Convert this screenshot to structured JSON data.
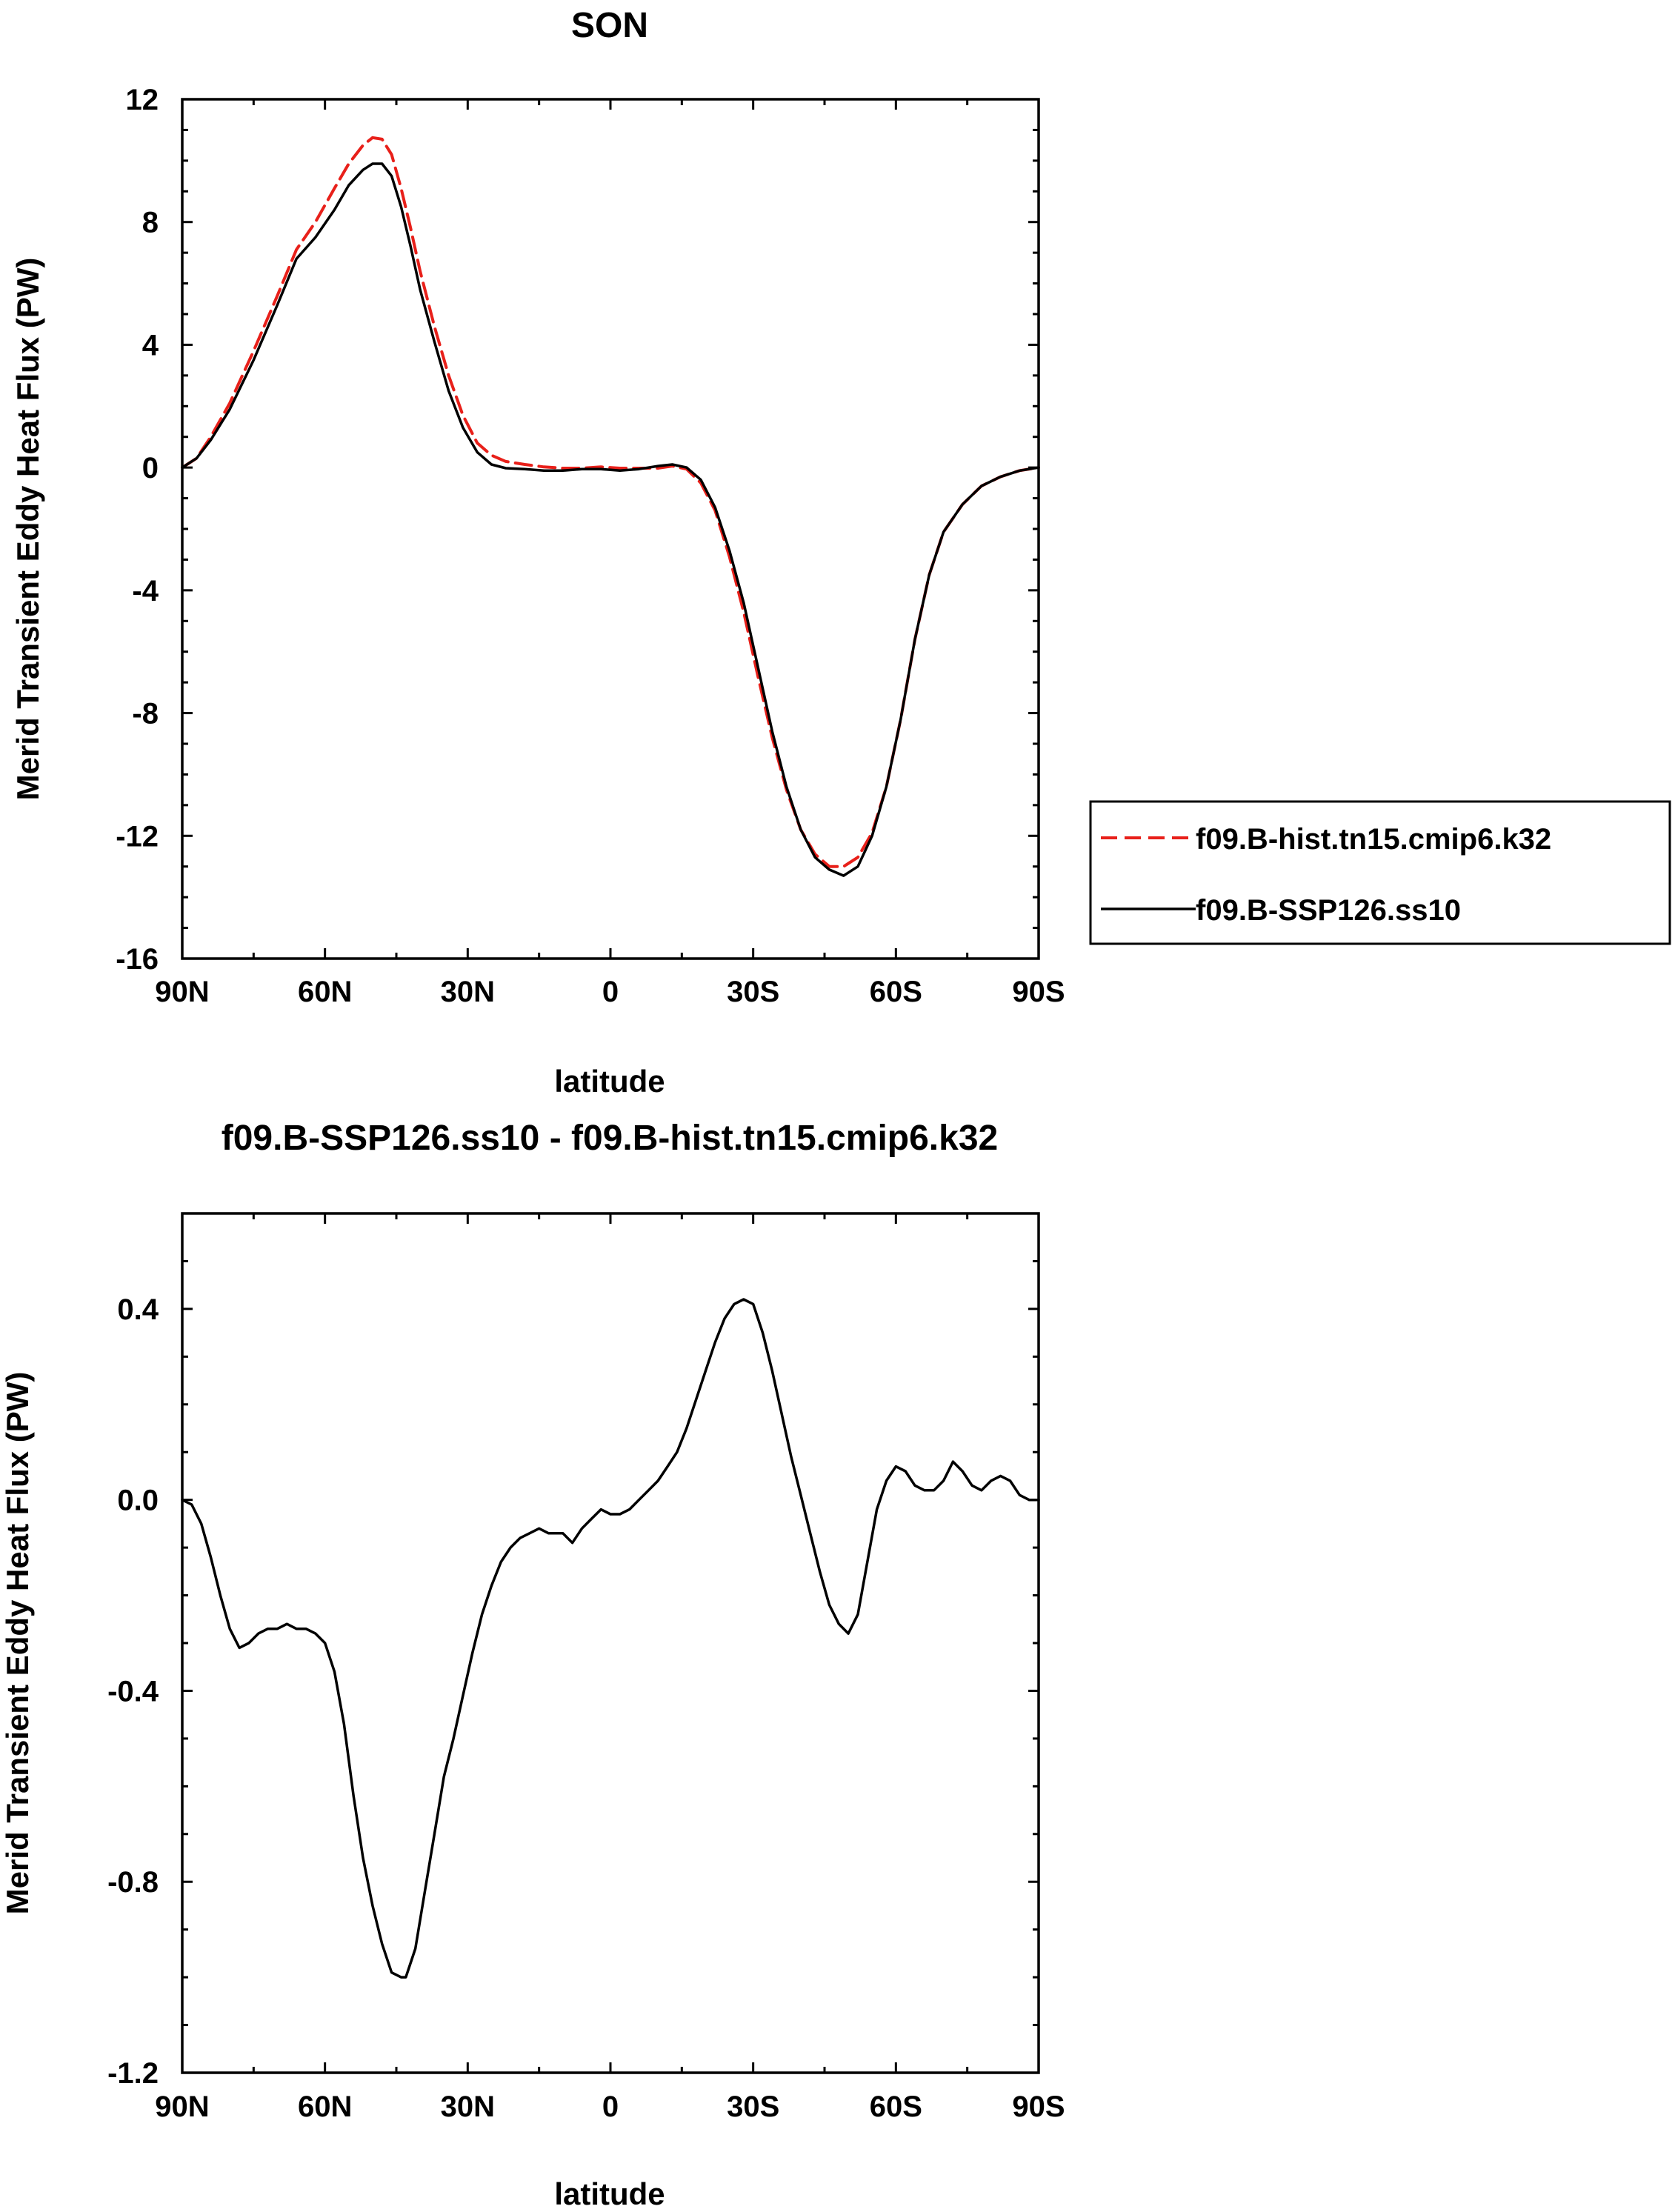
{
  "chart_data": [
    {
      "type": "line",
      "title": "SON",
      "xlabel": "latitude",
      "ylabel": "Merid Transient Eddy Heat Flux (PW)",
      "xlim": [
        90,
        -90
      ],
      "ylim": [
        -16,
        12
      ],
      "x_ticks": [
        {
          "value": 90,
          "label": "90N"
        },
        {
          "value": 60,
          "label": "60N"
        },
        {
          "value": 30,
          "label": "30N"
        },
        {
          "value": 0,
          "label": "0"
        },
        {
          "value": -30,
          "label": "30S"
        },
        {
          "value": -60,
          "label": "60S"
        },
        {
          "value": -90,
          "label": "90S"
        }
      ],
      "y_ticks": [
        {
          "value": 12,
          "label": "12"
        },
        {
          "value": 8,
          "label": "8"
        },
        {
          "value": 4,
          "label": "4"
        },
        {
          "value": 0,
          "label": "0"
        },
        {
          "value": -4,
          "label": "-4"
        },
        {
          "value": -8,
          "label": "-8"
        },
        {
          "value": -12,
          "label": "-12"
        },
        {
          "value": -16,
          "label": "-16"
        }
      ],
      "legend_position": "right",
      "series": [
        {
          "name": "f09.B-hist.tn15.cmip6.k32",
          "color": "#e8201a",
          "dash": "dashed",
          "points": [
            [
              90,
              0
            ],
            [
              87,
              0.3
            ],
            [
              84,
              1.0
            ],
            [
              80,
              2.1
            ],
            [
              75,
              3.8
            ],
            [
              70,
              5.6
            ],
            [
              66,
              7.1
            ],
            [
              62,
              8.0
            ],
            [
              58,
              9.1
            ],
            [
              55,
              9.9
            ],
            [
              52,
              10.5
            ],
            [
              50,
              10.75
            ],
            [
              48,
              10.7
            ],
            [
              46,
              10.2
            ],
            [
              44,
              9.1
            ],
            [
              42,
              7.8
            ],
            [
              40,
              6.4
            ],
            [
              37,
              4.6
            ],
            [
              34,
              3.0
            ],
            [
              31,
              1.7
            ],
            [
              28,
              0.8
            ],
            [
              25,
              0.4
            ],
            [
              22,
              0.2
            ],
            [
              18,
              0.1
            ],
            [
              14,
              0.02
            ],
            [
              10,
              -0.02
            ],
            [
              6,
              -0.02
            ],
            [
              2,
              0.02
            ],
            [
              -2,
              -0.02
            ],
            [
              -6,
              -0.02
            ],
            [
              -10,
              -0.02
            ],
            [
              -13,
              0.05
            ],
            [
              -16,
              -0.05
            ],
            [
              -19,
              -0.5
            ],
            [
              -22,
              -1.4
            ],
            [
              -25,
              -2.9
            ],
            [
              -28,
              -4.7
            ],
            [
              -31,
              -6.8
            ],
            [
              -34,
              -8.8
            ],
            [
              -37,
              -10.5
            ],
            [
              -40,
              -11.8
            ],
            [
              -43,
              -12.6
            ],
            [
              -46,
              -13.0
            ],
            [
              -49,
              -13.0
            ],
            [
              -52,
              -12.7
            ],
            [
              -55,
              -11.9
            ],
            [
              -58,
              -10.4
            ],
            [
              -61,
              -8.2
            ],
            [
              -64,
              -5.6
            ],
            [
              -67,
              -3.5
            ],
            [
              -70,
              -2.1
            ],
            [
              -74,
              -1.2
            ],
            [
              -78,
              -0.6
            ],
            [
              -82,
              -0.3
            ],
            [
              -86,
              -0.1
            ],
            [
              -90,
              0
            ]
          ]
        },
        {
          "name": "f09.B-SSP126.ss10",
          "color": "#000000",
          "dash": "solid",
          "points": [
            [
              90,
              0
            ],
            [
              87,
              0.3
            ],
            [
              84,
              0.9
            ],
            [
              80,
              1.9
            ],
            [
              75,
              3.5
            ],
            [
              70,
              5.3
            ],
            [
              66,
              6.8
            ],
            [
              62,
              7.5
            ],
            [
              58,
              8.4
            ],
            [
              55,
              9.2
            ],
            [
              52,
              9.7
            ],
            [
              50,
              9.9
            ],
            [
              48,
              9.9
            ],
            [
              46,
              9.5
            ],
            [
              44,
              8.5
            ],
            [
              42,
              7.2
            ],
            [
              40,
              5.8
            ],
            [
              37,
              4.1
            ],
            [
              34,
              2.5
            ],
            [
              31,
              1.3
            ],
            [
              28,
              0.5
            ],
            [
              25,
              0.1
            ],
            [
              22,
              -0.02
            ],
            [
              18,
              -0.05
            ],
            [
              14,
              -0.1
            ],
            [
              10,
              -0.1
            ],
            [
              6,
              -0.05
            ],
            [
              2,
              -0.05
            ],
            [
              -2,
              -0.1
            ],
            [
              -6,
              -0.05
            ],
            [
              -10,
              0.05
            ],
            [
              -13,
              0.1
            ],
            [
              -16,
              0.0
            ],
            [
              -19,
              -0.4
            ],
            [
              -22,
              -1.3
            ],
            [
              -25,
              -2.7
            ],
            [
              -28,
              -4.4
            ],
            [
              -31,
              -6.5
            ],
            [
              -34,
              -8.6
            ],
            [
              -37,
              -10.4
            ],
            [
              -40,
              -11.8
            ],
            [
              -43,
              -12.7
            ],
            [
              -46,
              -13.1
            ],
            [
              -49,
              -13.3
            ],
            [
              -52,
              -13.0
            ],
            [
              -55,
              -12.0
            ],
            [
              -58,
              -10.4
            ],
            [
              -61,
              -8.2
            ],
            [
              -64,
              -5.6
            ],
            [
              -67,
              -3.5
            ],
            [
              -70,
              -2.1
            ],
            [
              -74,
              -1.2
            ],
            [
              -78,
              -0.6
            ],
            [
              -82,
              -0.3
            ],
            [
              -86,
              -0.1
            ],
            [
              -90,
              0
            ]
          ]
        }
      ]
    },
    {
      "type": "line",
      "title": "f09.B-SSP126.ss10 - f09.B-hist.tn15.cmip6.k32",
      "xlabel": "latitude",
      "ylabel": "Merid Transient Eddy Heat Flux (PW)",
      "xlim": [
        90,
        -90
      ],
      "ylim": [
        -1.2,
        0.6
      ],
      "x_ticks": [
        {
          "value": 90,
          "label": "90N"
        },
        {
          "value": 60,
          "label": "60N"
        },
        {
          "value": 30,
          "label": "30N"
        },
        {
          "value": 0,
          "label": "0"
        },
        {
          "value": -30,
          "label": "30S"
        },
        {
          "value": -60,
          "label": "60S"
        },
        {
          "value": -90,
          "label": "90S"
        }
      ],
      "y_ticks": [
        {
          "value": 0.4,
          "label": "0.4"
        },
        {
          "value": 0.0,
          "label": "0.0"
        },
        {
          "value": -0.4,
          "label": "-0.4"
        },
        {
          "value": -0.8,
          "label": "-0.8"
        },
        {
          "value": -1.2,
          "label": "-1.2"
        }
      ],
      "series": [
        {
          "name": "f09.B-SSP126.ss10 - f09.B-hist.tn15.cmip6.k32",
          "color": "#000000",
          "dash": "solid",
          "points": [
            [
              90,
              0
            ],
            [
              88,
              -0.01
            ],
            [
              86,
              -0.05
            ],
            [
              84,
              -0.12
            ],
            [
              82,
              -0.2
            ],
            [
              80,
              -0.27
            ],
            [
              78,
              -0.31
            ],
            [
              76,
              -0.3
            ],
            [
              74,
              -0.28
            ],
            [
              72,
              -0.27
            ],
            [
              70,
              -0.27
            ],
            [
              68,
              -0.26
            ],
            [
              66,
              -0.27
            ],
            [
              64,
              -0.27
            ],
            [
              62,
              -0.28
            ],
            [
              60,
              -0.3
            ],
            [
              58,
              -0.36
            ],
            [
              56,
              -0.47
            ],
            [
              54,
              -0.62
            ],
            [
              52,
              -0.75
            ],
            [
              50,
              -0.85
            ],
            [
              48,
              -0.93
            ],
            [
              46,
              -0.99
            ],
            [
              44,
              -1.0
            ],
            [
              43,
              -1.0
            ],
            [
              41,
              -0.94
            ],
            [
              39,
              -0.82
            ],
            [
              37,
              -0.7
            ],
            [
              35,
              -0.58
            ],
            [
              33,
              -0.5
            ],
            [
              31,
              -0.41
            ],
            [
              29,
              -0.32
            ],
            [
              27,
              -0.24
            ],
            [
              25,
              -0.18
            ],
            [
              23,
              -0.13
            ],
            [
              21,
              -0.1
            ],
            [
              19,
              -0.08
            ],
            [
              17,
              -0.07
            ],
            [
              15,
              -0.06
            ],
            [
              13,
              -0.07
            ],
            [
              10,
              -0.07
            ],
            [
              8,
              -0.09
            ],
            [
              6,
              -0.06
            ],
            [
              4,
              -0.04
            ],
            [
              2,
              -0.02
            ],
            [
              0,
              -0.03
            ],
            [
              -2,
              -0.03
            ],
            [
              -4,
              -0.02
            ],
            [
              -6,
              0.0
            ],
            [
              -8,
              0.02
            ],
            [
              -10,
              0.04
            ],
            [
              -12,
              0.07
            ],
            [
              -14,
              0.1
            ],
            [
              -16,
              0.15
            ],
            [
              -18,
              0.21
            ],
            [
              -20,
              0.27
            ],
            [
              -22,
              0.33
            ],
            [
              -24,
              0.38
            ],
            [
              -26,
              0.41
            ],
            [
              -28,
              0.42
            ],
            [
              -30,
              0.41
            ],
            [
              -32,
              0.35
            ],
            [
              -34,
              0.27
            ],
            [
              -36,
              0.18
            ],
            [
              -38,
              0.09
            ],
            [
              -40,
              0.01
            ],
            [
              -42,
              -0.07
            ],
            [
              -44,
              -0.15
            ],
            [
              -46,
              -0.22
            ],
            [
              -48,
              -0.26
            ],
            [
              -50,
              -0.28
            ],
            [
              -52,
              -0.24
            ],
            [
              -54,
              -0.13
            ],
            [
              -56,
              -0.02
            ],
            [
              -58,
              0.04
            ],
            [
              -60,
              0.07
            ],
            [
              -62,
              0.06
            ],
            [
              -64,
              0.03
            ],
            [
              -66,
              0.02
            ],
            [
              -68,
              0.02
            ],
            [
              -70,
              0.04
            ],
            [
              -72,
              0.08
            ],
            [
              -74,
              0.06
            ],
            [
              -76,
              0.03
            ],
            [
              -78,
              0.02
            ],
            [
              -80,
              0.04
            ],
            [
              -82,
              0.05
            ],
            [
              -84,
              0.04
            ],
            [
              -86,
              0.01
            ],
            [
              -88,
              0.0
            ],
            [
              -90,
              0.0
            ]
          ]
        }
      ]
    }
  ]
}
